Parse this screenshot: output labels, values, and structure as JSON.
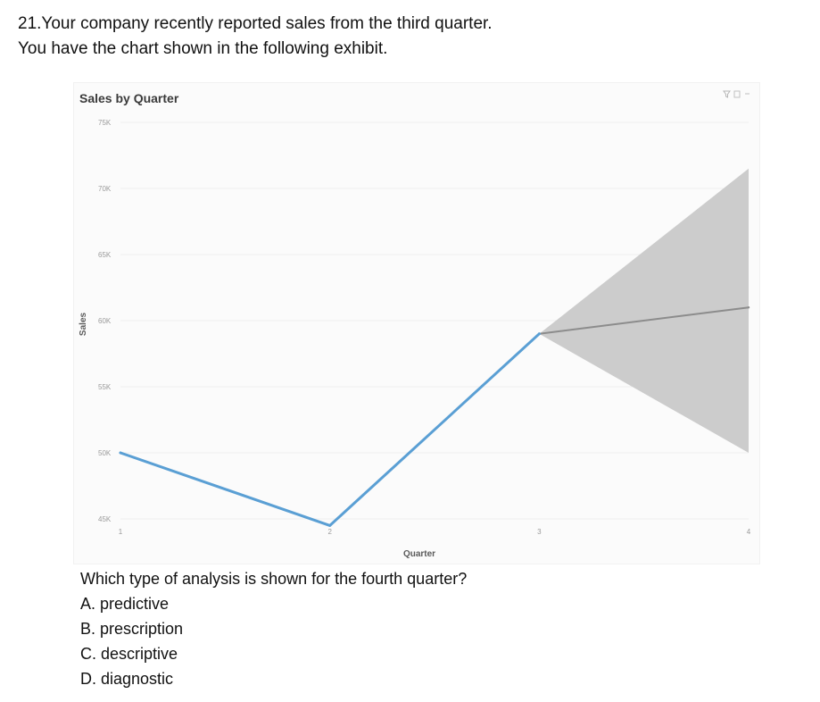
{
  "question": {
    "line1": "21.Your company recently reported sales from the third quarter.",
    "line2": "You have the chart shown in the following exhibit."
  },
  "chart_data": {
    "type": "line",
    "title": "Sales by Quarter",
    "xlabel": "Quarter",
    "ylabel": "Sales",
    "x_ticks": [
      "1",
      "2",
      "3",
      "4"
    ],
    "y_ticks": [
      "75K",
      "70K",
      "65K",
      "60K",
      "55K",
      "50K",
      "45K"
    ],
    "ylim": [
      45000,
      75000
    ],
    "grid": true,
    "series": [
      {
        "type": "actual",
        "x": [
          1,
          2,
          3
        ],
        "values": [
          50000,
          44500,
          59000
        ],
        "color": "#5a9fd4"
      },
      {
        "type": "forecast",
        "x": [
          3,
          4
        ],
        "values": [
          59000,
          61000
        ],
        "color": "#8c8c8c",
        "lower": [
          59000,
          50000
        ],
        "upper": [
          59000,
          71500
        ],
        "band_color": "#cccccc"
      }
    ]
  },
  "prompt": "Which type of analysis is shown for the fourth quarter?",
  "options": [
    "A. predictive",
    "B. prescription",
    "C. descriptive",
    "D. diagnostic"
  ],
  "icons": [
    "filter-icon",
    "focus-mode-icon",
    "more-options-icon"
  ]
}
